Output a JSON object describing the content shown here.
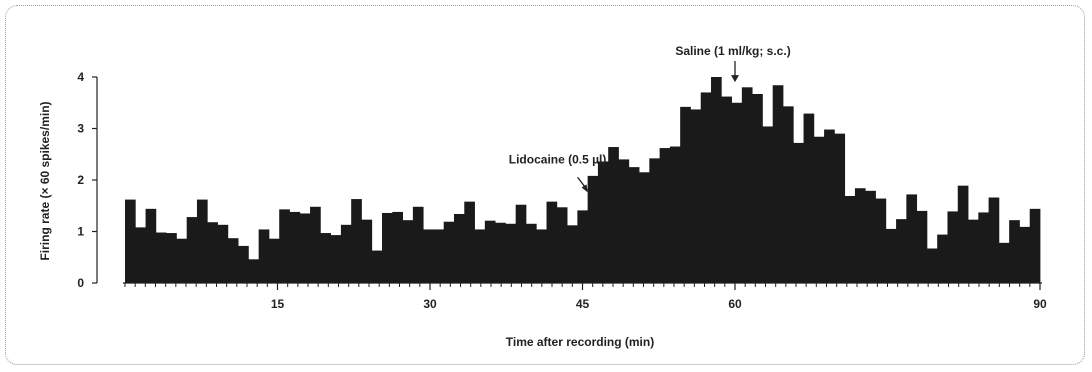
{
  "chart_data": {
    "type": "bar",
    "title": "",
    "xlabel": "Time after recording (min)",
    "ylabel": "Firing rate (× 60 spikes/min)",
    "xlim": [
      0,
      90
    ],
    "ylim": [
      0,
      4
    ],
    "xticks": [
      15,
      30,
      45,
      60,
      90
    ],
    "yticks": [
      0,
      1,
      2,
      3,
      4
    ],
    "grid": false,
    "bar_color": "#1a1a1a",
    "values": [
      1.62,
      1.08,
      1.44,
      0.98,
      0.97,
      0.86,
      1.28,
      1.62,
      1.18,
      1.13,
      0.87,
      0.72,
      0.46,
      1.04,
      0.86,
      1.43,
      1.38,
      1.35,
      1.48,
      0.97,
      0.93,
      1.13,
      1.63,
      1.23,
      0.63,
      1.36,
      1.38,
      1.22,
      1.48,
      1.04,
      1.04,
      1.19,
      1.34,
      1.58,
      1.04,
      1.21,
      1.17,
      1.15,
      1.52,
      1.15,
      1.04,
      1.58,
      1.47,
      1.12,
      1.41,
      2.08,
      2.36,
      2.64,
      2.4,
      2.25,
      2.15,
      2.42,
      2.62,
      2.65,
      3.42,
      3.37,
      3.7,
      4.0,
      3.62,
      3.5,
      3.8,
      3.67,
      3.04,
      3.84,
      3.43,
      2.72,
      3.29,
      2.84,
      2.98,
      2.9,
      1.69,
      1.84,
      1.79,
      1.64,
      1.05,
      1.24,
      1.72,
      1.4,
      0.67,
      0.94,
      1.39,
      1.89,
      1.23,
      1.37,
      1.66,
      0.78,
      1.22,
      1.09,
      1.44
    ],
    "annotations": [
      {
        "text": "Lidocaine (0.5 µl)",
        "x": 45.5,
        "y": 1.45
      },
      {
        "text": "Saline (1 ml/kg; s.c.)",
        "x": 60,
        "y": 3.9
      }
    ]
  }
}
